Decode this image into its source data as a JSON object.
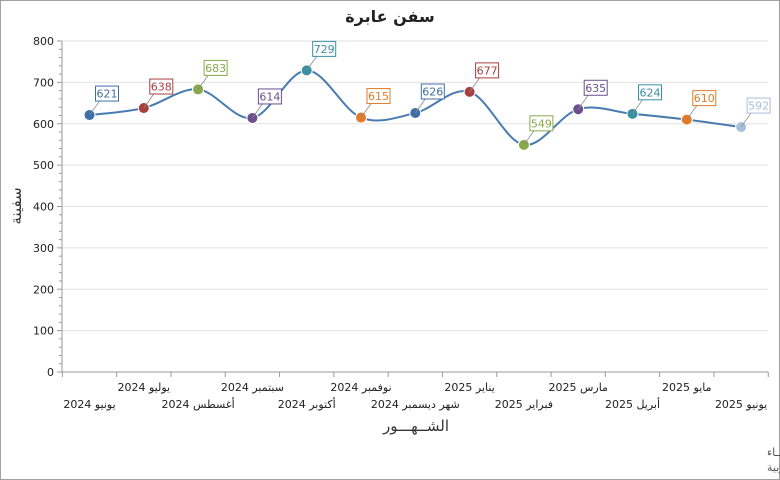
{
  "chart_data": {
    "type": "line",
    "title": "سفن عابرة",
    "xlabel": "الشــهـــور",
    "ylabel": "سفينة",
    "ylim": [
      0,
      800
    ],
    "yticks": [
      0,
      100,
      200,
      300,
      400,
      500,
      600,
      700,
      800
    ],
    "categories": [
      "يونيو 2024",
      "يوليو 2024",
      "أغسطس 2024",
      "سبتمبر 2024",
      "أكتوبر 2024",
      "نوفمبر 2024",
      "ديسمبر 2024",
      "يناير 2025",
      "فبراير 2025",
      "مارس 2025",
      "أبريل 2025",
      "مايو 2025",
      "يونيو 2025"
    ],
    "category_labels": [
      "يونيو 2024",
      "يوليو 2024",
      "أغسطس 2024",
      "سبتمبر 2024",
      "أكتوبر 2024",
      "نوفمبر 2024",
      "شهر ديسمبر 2024",
      "يناير 2025",
      "فبراير 2025",
      "مارس 2025",
      "أبريل 2025",
      "مايو 2025",
      "يونيو 2025"
    ],
    "series": [
      {
        "name": "سفن عابرة",
        "values": [
          621,
          638,
          683,
          614,
          729,
          615,
          626,
          677,
          549,
          635,
          624,
          610,
          592
        ]
      }
    ],
    "point_colors": [
      "#3f6ea8",
      "#a83f3f",
      "#88a84a",
      "#6b4f8f",
      "#3a8fa3",
      "#e07b2a",
      "#3f6ea8",
      "#a83f3f",
      "#88a84a",
      "#6b4f8f",
      "#3a8fa3",
      "#e07b2a",
      "#a9bfdc"
    ],
    "line_color": "#4a7bb0"
  },
  "footer": {
    "line1": "حقوق الملكية للجهـــاز المركزي للتعبئة العــامة والأحصـــاء",
    "line2": "المصدر الأســاسي للأحصاءات الرسمية لجمهورية مصر العربية"
  }
}
